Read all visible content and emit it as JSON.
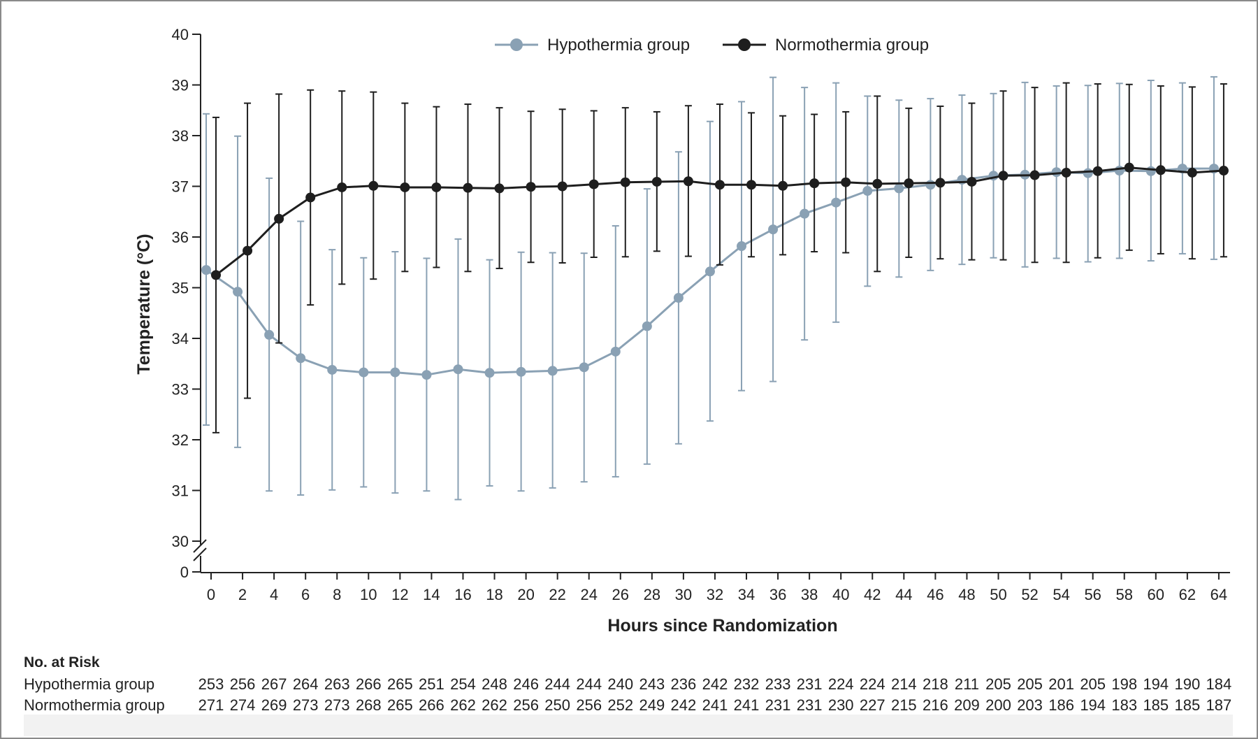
{
  "colors": {
    "hypothermia": "#8aa1b4",
    "normothermia": "#1e1e1e",
    "axis": "#222222"
  },
  "chart_data": {
    "type": "line",
    "xlabel": "Hours since Randomization",
    "ylabel": "Temperature (°C)",
    "x": [
      0,
      2,
      4,
      6,
      8,
      10,
      12,
      14,
      16,
      18,
      20,
      22,
      24,
      26,
      28,
      30,
      32,
      34,
      36,
      38,
      40,
      42,
      44,
      46,
      48,
      50,
      52,
      54,
      56,
      58,
      60,
      62,
      64
    ],
    "xlim": [
      0,
      64
    ],
    "ylim": [
      30,
      40
    ],
    "y_break": true,
    "y_ticks": [
      "0",
      "30",
      "31",
      "32",
      "33",
      "34",
      "35",
      "36",
      "37",
      "38",
      "39",
      "40"
    ],
    "x_ticks": [
      "0",
      "2",
      "4",
      "6",
      "8",
      "10",
      "12",
      "14",
      "16",
      "18",
      "20",
      "22",
      "24",
      "26",
      "28",
      "30",
      "32",
      "34",
      "36",
      "38",
      "40",
      "42",
      "44",
      "46",
      "48",
      "50",
      "52",
      "54",
      "56",
      "58",
      "60",
      "62",
      "64"
    ],
    "grid": false,
    "legend_position": "top-center",
    "error_bars": true,
    "series": [
      {
        "name": "Hypothermia group",
        "values": [
          35.35,
          34.92,
          34.07,
          33.61,
          33.38,
          33.33,
          33.33,
          33.28,
          33.39,
          33.32,
          33.34,
          33.36,
          33.43,
          33.74,
          34.24,
          34.8,
          35.32,
          35.82,
          36.15,
          36.46,
          36.68,
          36.91,
          36.96,
          37.03,
          37.13,
          37.21,
          37.23,
          37.28,
          37.26,
          37.31,
          37.3,
          37.35,
          37.35
        ],
        "lower": [
          32.29,
          31.85,
          30.99,
          30.91,
          31.01,
          31.07,
          30.95,
          30.99,
          30.82,
          31.09,
          30.99,
          31.05,
          31.17,
          31.27,
          31.52,
          31.92,
          32.37,
          32.97,
          33.15,
          33.97,
          34.32,
          35.03,
          35.21,
          35.34,
          35.46,
          35.59,
          35.41,
          35.58,
          35.51,
          35.58,
          35.53,
          35.67,
          35.56
        ],
        "upper": [
          38.43,
          37.99,
          37.16,
          36.31,
          35.75,
          35.59,
          35.71,
          35.58,
          35.96,
          35.55,
          35.7,
          35.69,
          35.68,
          36.22,
          36.95,
          37.68,
          38.28,
          38.67,
          39.15,
          38.95,
          39.04,
          38.78,
          38.7,
          38.73,
          38.8,
          38.83,
          39.05,
          38.98,
          38.99,
          39.03,
          39.09,
          39.04,
          39.16
        ]
      },
      {
        "name": "Normothermia group",
        "values": [
          35.25,
          35.73,
          36.36,
          36.78,
          36.98,
          37.01,
          36.98,
          36.98,
          36.97,
          36.96,
          36.99,
          37.0,
          37.04,
          37.08,
          37.09,
          37.1,
          37.03,
          37.03,
          37.01,
          37.06,
          37.08,
          37.05,
          37.06,
          37.07,
          37.09,
          37.21,
          37.22,
          37.27,
          37.3,
          37.37,
          37.32,
          37.27,
          37.31
        ],
        "lower": [
          32.14,
          32.82,
          33.91,
          34.66,
          35.07,
          35.17,
          35.32,
          35.4,
          35.32,
          35.38,
          35.5,
          35.49,
          35.6,
          35.61,
          35.72,
          35.62,
          35.45,
          35.61,
          35.65,
          35.71,
          35.69,
          35.32,
          35.6,
          35.57,
          35.55,
          35.55,
          35.5,
          35.5,
          35.59,
          35.74,
          35.67,
          35.57,
          35.61
        ],
        "upper": [
          38.36,
          38.64,
          38.82,
          38.9,
          38.88,
          38.86,
          38.64,
          38.57,
          38.62,
          38.55,
          38.48,
          38.52,
          38.49,
          38.55,
          38.47,
          38.59,
          38.62,
          38.45,
          38.39,
          38.42,
          38.47,
          38.78,
          38.54,
          38.58,
          38.64,
          38.88,
          38.95,
          39.04,
          39.02,
          39.01,
          38.98,
          38.96,
          39.02
        ]
      }
    ]
  },
  "risk_table": {
    "title": "No. at Risk",
    "rows": [
      {
        "label": "Hypothermia group",
        "values": [
          "253",
          "256",
          "267",
          "264",
          "263",
          "266",
          "265",
          "251",
          "254",
          "248",
          "246",
          "244",
          "244",
          "240",
          "243",
          "236",
          "242",
          "232",
          "233",
          "231",
          "224",
          "224",
          "214",
          "218",
          "211",
          "205",
          "205",
          "201",
          "205",
          "198",
          "194",
          "190",
          "184"
        ]
      },
      {
        "label": "Normothermia group",
        "values": [
          "271",
          "274",
          "269",
          "273",
          "273",
          "268",
          "265",
          "266",
          "262",
          "262",
          "256",
          "250",
          "256",
          "252",
          "249",
          "242",
          "241",
          "241",
          "231",
          "231",
          "230",
          "227",
          "215",
          "216",
          "209",
          "200",
          "203",
          "186",
          "194",
          "183",
          "185",
          "185",
          "187"
        ]
      }
    ]
  }
}
